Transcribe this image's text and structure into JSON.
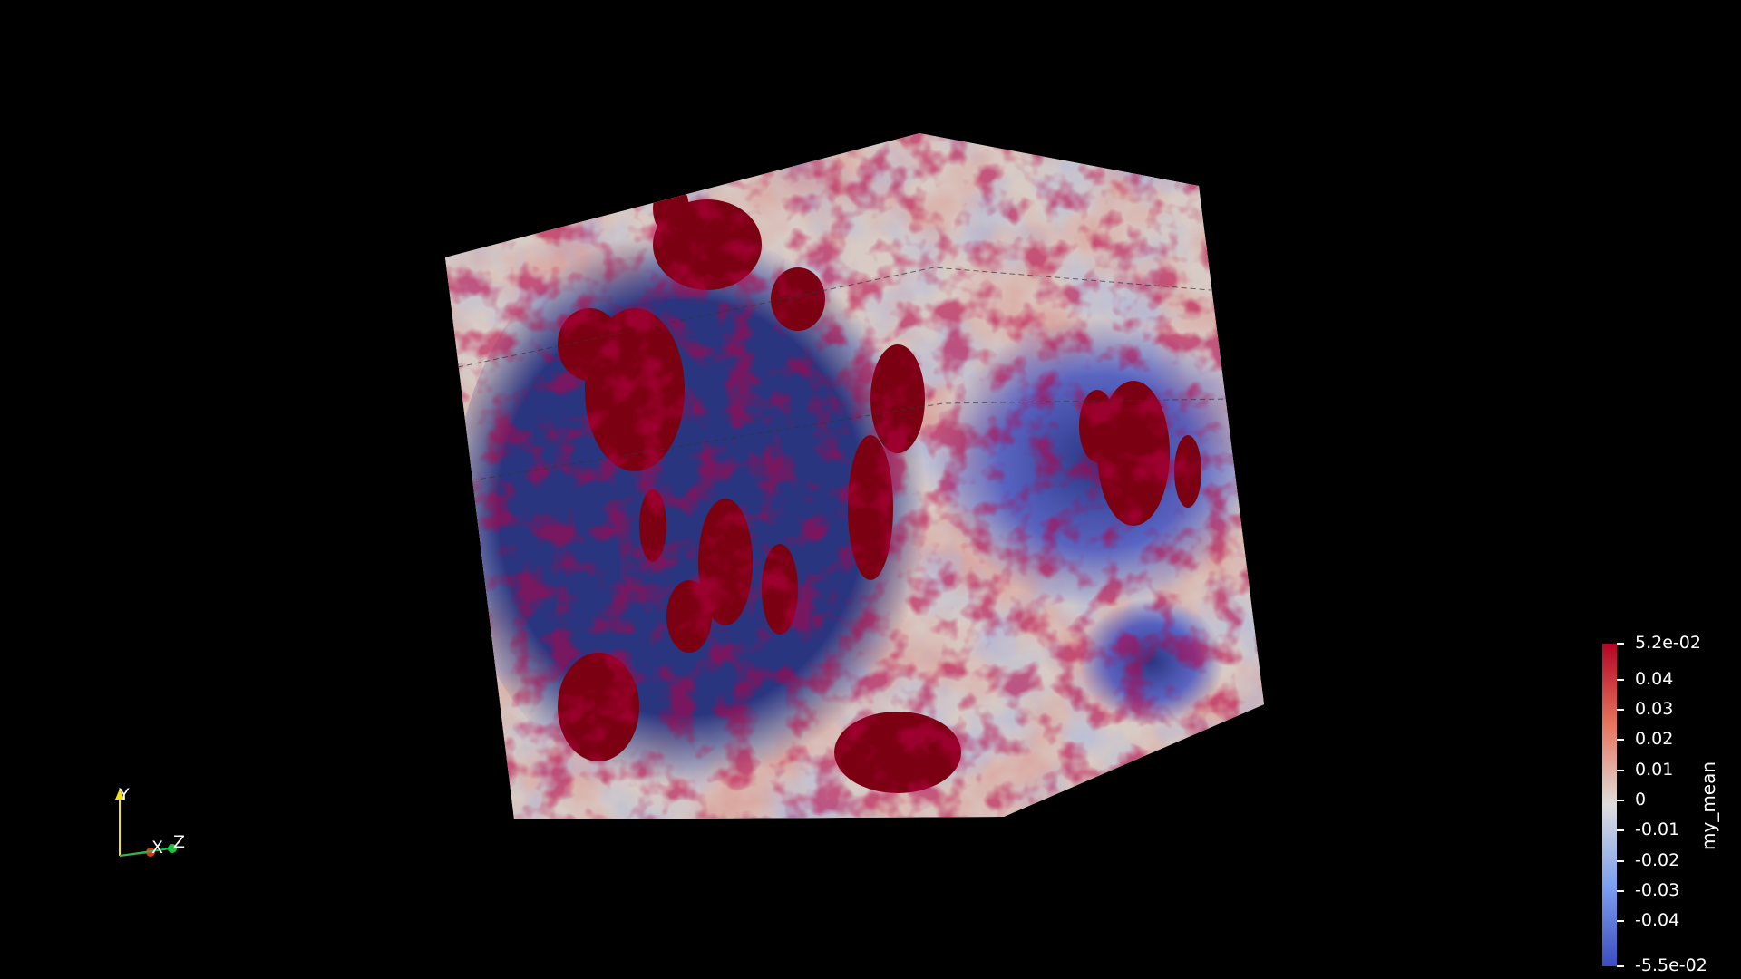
{
  "scalar_bar": {
    "title": "my_mean",
    "ticks": [
      {
        "label": "5.2e-02",
        "value": 0.052
      },
      {
        "label": "0.04",
        "value": 0.04
      },
      {
        "label": "0.03",
        "value": 0.03
      },
      {
        "label": "0.02",
        "value": 0.02
      },
      {
        "label": "0.01",
        "value": 0.01
      },
      {
        "label": "0",
        "value": 0
      },
      {
        "label": "-0.01",
        "value": -0.01
      },
      {
        "label": "-0.02",
        "value": -0.02
      },
      {
        "label": "-0.03",
        "value": -0.03
      },
      {
        "label": "-0.04",
        "value": -0.04
      },
      {
        "label": "-5.5e-02",
        "value": -0.055
      }
    ],
    "range": [
      -0.055,
      0.052
    ],
    "colors": {
      "high": "#b40426",
      "mid": "#dddddd",
      "low": "#3b4cc0",
      "saturated_high": "#7a0012",
      "saturated_low": "#2a3580"
    }
  },
  "orientation_axes": {
    "y_label": "Y",
    "x_label": "X",
    "z_label": "Z",
    "colors": {
      "x": "#e03020",
      "y": "#f0e020",
      "z": "#20c040"
    }
  },
  "volume": {
    "description_colors": {
      "background": "#000000"
    }
  }
}
